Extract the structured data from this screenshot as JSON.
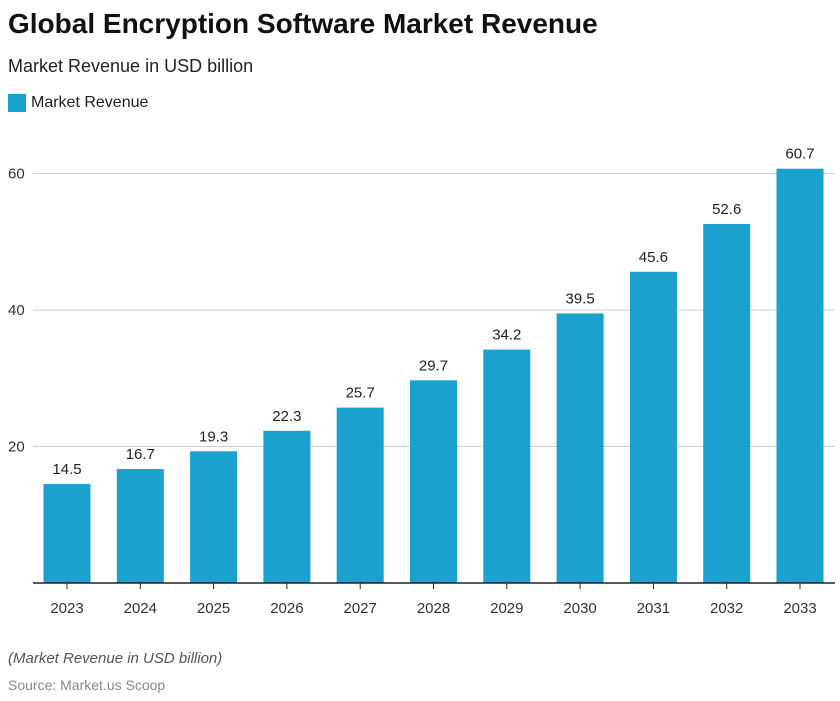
{
  "title": "Global Encryption Software Market Revenue",
  "subtitle": "Market Revenue in USD billion",
  "note": "(Market Revenue in USD billion)",
  "source": "Source: Market.us Scoop",
  "colors": {
    "bar": "#1aa1cd",
    "grid": "#cccccc",
    "axis": "#222222"
  },
  "chart_data": {
    "type": "bar",
    "categories": [
      "2023",
      "2024",
      "2025",
      "2026",
      "2027",
      "2028",
      "2029",
      "2030",
      "2031",
      "2032",
      "2033"
    ],
    "series": [
      {
        "name": "Market Revenue",
        "values": [
          14.5,
          16.7,
          19.3,
          22.3,
          25.7,
          29.7,
          34.2,
          39.5,
          45.6,
          52.6,
          60.7
        ]
      }
    ],
    "yticks": [
      20,
      40,
      60
    ],
    "ylim": [
      0,
      64
    ],
    "grid": true,
    "legend": "top-left",
    "xlabel": "",
    "ylabel": ""
  }
}
